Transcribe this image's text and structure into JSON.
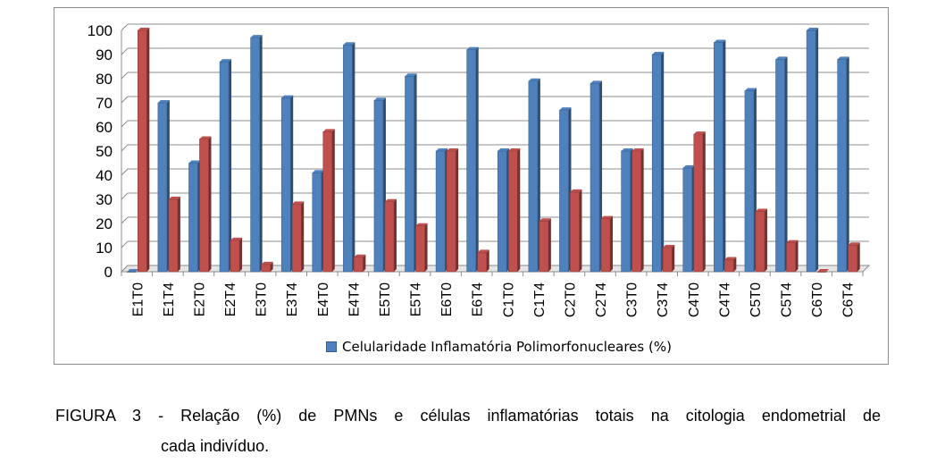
{
  "chart_data": {
    "type": "bar",
    "categories": [
      "E1T0",
      "E1T4",
      "E2T0",
      "E2T4",
      "E3T0",
      "E3T4",
      "E4T0",
      "E4T4",
      "E5T0",
      "E5T4",
      "E6T0",
      "E6T4",
      "C1T0",
      "C1T4",
      "C2T0",
      "C2T4",
      "C3T0",
      "C3T4",
      "C4T0",
      "C4T4",
      "C5T0",
      "C5T4",
      "C6T0",
      "C6T4"
    ],
    "series": [
      {
        "name": "Celularidade Inflamatória Polimorfonucleares (%)",
        "color": "#4f81bd",
        "values": [
          0,
          70,
          45,
          87,
          97,
          72,
          41,
          94,
          71,
          81,
          50,
          92,
          50,
          79,
          67,
          78,
          50,
          90,
          43,
          95,
          75,
          88,
          100,
          88
        ]
      },
      {
        "name": "",
        "color": "#c0504d",
        "values": [
          100,
          30,
          55,
          13,
          3,
          28,
          58,
          6,
          29,
          19,
          50,
          8,
          50,
          21,
          33,
          22,
          50,
          10,
          57,
          5,
          25,
          12,
          0,
          11
        ]
      }
    ],
    "ylim": [
      0,
      100
    ],
    "yticks": [
      "0",
      "10",
      "20",
      "30",
      "40",
      "50",
      "60",
      "70",
      "80",
      "90",
      "100"
    ],
    "grid": true,
    "legend_position": "bottom"
  },
  "caption": {
    "line1": "FIGURA 3 - Relação (%) de PMNs e células inflamatórias totais na citologia endometrial de",
    "line2": "cada indivíduo."
  }
}
